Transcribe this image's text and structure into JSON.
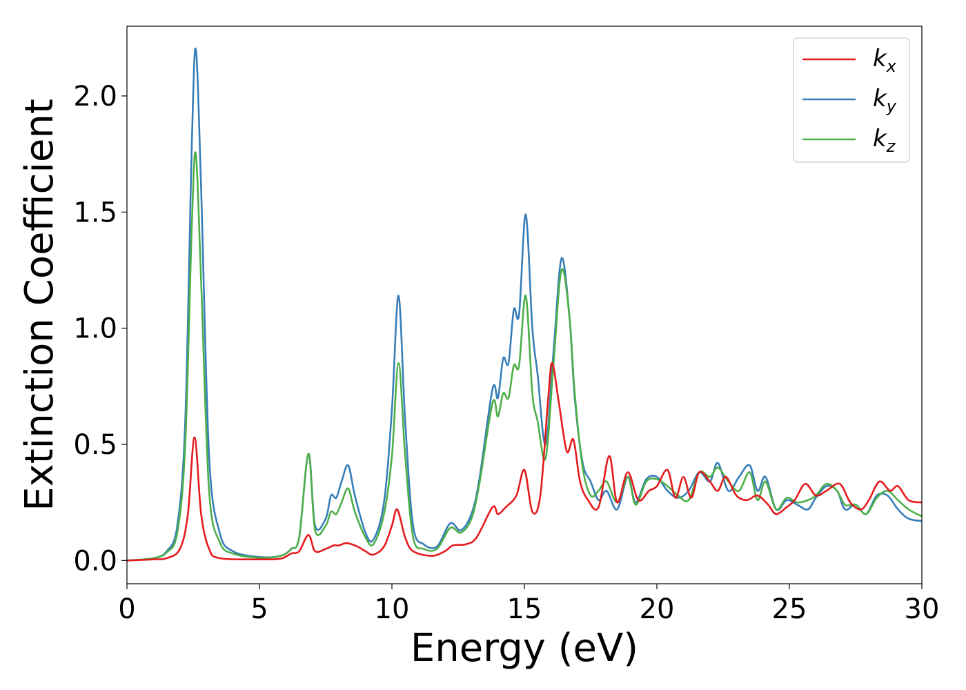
{
  "chart_data": {
    "type": "line",
    "title": "",
    "xlabel": "Energy (eV)",
    "ylabel": "Extinction Coefficient",
    "xlim": [
      0,
      30
    ],
    "ylim": [
      -0.1,
      2.3
    ],
    "xticks": [
      0,
      5,
      10,
      15,
      20,
      25,
      30
    ],
    "xtick_labels": [
      "0",
      "5",
      "10",
      "15",
      "20",
      "25",
      "30"
    ],
    "yticks": [
      0.0,
      0.5,
      1.0,
      1.5,
      2.0
    ],
    "ytick_labels": [
      "0.0",
      "0.5",
      "1.0",
      "1.5",
      "2.0"
    ],
    "grid": false,
    "legend_position": "top-right",
    "series": [
      {
        "name": "kx",
        "legend_main": "k",
        "legend_sub": "x",
        "color": "#e41a1c",
        "points": [
          [
            0,
            0
          ],
          [
            1,
            0.005
          ],
          [
            1.5,
            0.01
          ],
          [
            2,
            0.05
          ],
          [
            2.3,
            0.2
          ],
          [
            2.55,
            0.53
          ],
          [
            2.8,
            0.2
          ],
          [
            3.1,
            0.05
          ],
          [
            3.5,
            0.01
          ],
          [
            5,
            0.005
          ],
          [
            5.8,
            0.008
          ],
          [
            6.2,
            0.03
          ],
          [
            6.5,
            0.04
          ],
          [
            6.85,
            0.11
          ],
          [
            7.1,
            0.04
          ],
          [
            7.5,
            0.05
          ],
          [
            7.8,
            0.065
          ],
          [
            8.0,
            0.065
          ],
          [
            8.3,
            0.075
          ],
          [
            8.7,
            0.06
          ],
          [
            9.0,
            0.04
          ],
          [
            9.3,
            0.025
          ],
          [
            9.7,
            0.06
          ],
          [
            10.0,
            0.15
          ],
          [
            10.2,
            0.22
          ],
          [
            10.5,
            0.1
          ],
          [
            10.8,
            0.04
          ],
          [
            11.5,
            0.02
          ],
          [
            12.0,
            0.04
          ],
          [
            12.3,
            0.065
          ],
          [
            12.8,
            0.07
          ],
          [
            13.2,
            0.1
          ],
          [
            13.8,
            0.23
          ],
          [
            14.0,
            0.2
          ],
          [
            14.3,
            0.23
          ],
          [
            14.7,
            0.28
          ],
          [
            15.0,
            0.39
          ],
          [
            15.3,
            0.21
          ],
          [
            15.6,
            0.28
          ],
          [
            15.9,
            0.7
          ],
          [
            16.05,
            0.85
          ],
          [
            16.3,
            0.68
          ],
          [
            16.6,
            0.47
          ],
          [
            16.85,
            0.52
          ],
          [
            17.1,
            0.34
          ],
          [
            17.4,
            0.26
          ],
          [
            17.8,
            0.23
          ],
          [
            18.2,
            0.45
          ],
          [
            18.5,
            0.25
          ],
          [
            18.9,
            0.38
          ],
          [
            19.3,
            0.26
          ],
          [
            19.7,
            0.3
          ],
          [
            20.0,
            0.32
          ],
          [
            20.4,
            0.39
          ],
          [
            20.7,
            0.27
          ],
          [
            21.0,
            0.36
          ],
          [
            21.3,
            0.27
          ],
          [
            21.6,
            0.38
          ],
          [
            22.0,
            0.34
          ],
          [
            22.3,
            0.3
          ],
          [
            22.6,
            0.36
          ],
          [
            23.0,
            0.28
          ],
          [
            23.4,
            0.26
          ],
          [
            23.8,
            0.28
          ],
          [
            24.2,
            0.24
          ],
          [
            24.5,
            0.2
          ],
          [
            24.9,
            0.23
          ],
          [
            25.2,
            0.26
          ],
          [
            25.6,
            0.33
          ],
          [
            26.0,
            0.28
          ],
          [
            26.4,
            0.3
          ],
          [
            26.9,
            0.33
          ],
          [
            27.3,
            0.25
          ],
          [
            27.7,
            0.22
          ],
          [
            28.0,
            0.26
          ],
          [
            28.4,
            0.34
          ],
          [
            28.8,
            0.3
          ],
          [
            29.1,
            0.32
          ],
          [
            29.5,
            0.26
          ],
          [
            30,
            0.25
          ]
        ]
      },
      {
        "name": "ky",
        "legend_main": "k",
        "legend_sub": "y",
        "color": "#377eb8",
        "points": [
          [
            0,
            0
          ],
          [
            1,
            0.01
          ],
          [
            1.5,
            0.04
          ],
          [
            1.9,
            0.15
          ],
          [
            2.2,
            0.6
          ],
          [
            2.45,
            1.8
          ],
          [
            2.6,
            2.2
          ],
          [
            2.8,
            1.6
          ],
          [
            3.1,
            0.45
          ],
          [
            3.5,
            0.12
          ],
          [
            4.0,
            0.04
          ],
          [
            5.0,
            0.015
          ],
          [
            5.8,
            0.02
          ],
          [
            6.2,
            0.05
          ],
          [
            6.5,
            0.1
          ],
          [
            6.85,
            0.46
          ],
          [
            7.1,
            0.15
          ],
          [
            7.5,
            0.18
          ],
          [
            7.7,
            0.28
          ],
          [
            7.9,
            0.27
          ],
          [
            8.1,
            0.34
          ],
          [
            8.35,
            0.41
          ],
          [
            8.6,
            0.28
          ],
          [
            9.0,
            0.12
          ],
          [
            9.3,
            0.09
          ],
          [
            9.7,
            0.25
          ],
          [
            10.0,
            0.65
          ],
          [
            10.25,
            1.14
          ],
          [
            10.5,
            0.6
          ],
          [
            10.8,
            0.15
          ],
          [
            11.2,
            0.07
          ],
          [
            11.7,
            0.06
          ],
          [
            12.2,
            0.16
          ],
          [
            12.6,
            0.13
          ],
          [
            13.0,
            0.2
          ],
          [
            13.3,
            0.35
          ],
          [
            13.8,
            0.74
          ],
          [
            14.0,
            0.7
          ],
          [
            14.2,
            0.87
          ],
          [
            14.4,
            0.85
          ],
          [
            14.6,
            1.08
          ],
          [
            14.8,
            1.06
          ],
          [
            15.05,
            1.49
          ],
          [
            15.3,
            1.0
          ],
          [
            15.5,
            0.8
          ],
          [
            15.8,
            0.5
          ],
          [
            16.1,
            0.9
          ],
          [
            16.4,
            1.3
          ],
          [
            16.7,
            1.05
          ],
          [
            16.9,
            0.7
          ],
          [
            17.2,
            0.42
          ],
          [
            17.5,
            0.34
          ],
          [
            17.8,
            0.26
          ],
          [
            18.1,
            0.3
          ],
          [
            18.5,
            0.22
          ],
          [
            18.9,
            0.36
          ],
          [
            19.2,
            0.25
          ],
          [
            19.6,
            0.35
          ],
          [
            20.0,
            0.36
          ],
          [
            20.4,
            0.3
          ],
          [
            20.8,
            0.27
          ],
          [
            21.2,
            0.3
          ],
          [
            21.6,
            0.38
          ],
          [
            22.0,
            0.34
          ],
          [
            22.3,
            0.42
          ],
          [
            22.7,
            0.3
          ],
          [
            23.1,
            0.36
          ],
          [
            23.5,
            0.41
          ],
          [
            23.8,
            0.3
          ],
          [
            24.1,
            0.36
          ],
          [
            24.5,
            0.22
          ],
          [
            24.9,
            0.26
          ],
          [
            25.3,
            0.24
          ],
          [
            25.7,
            0.22
          ],
          [
            26.0,
            0.27
          ],
          [
            26.4,
            0.32
          ],
          [
            26.8,
            0.3
          ],
          [
            27.1,
            0.22
          ],
          [
            27.5,
            0.24
          ],
          [
            27.9,
            0.2
          ],
          [
            28.3,
            0.28
          ],
          [
            28.7,
            0.28
          ],
          [
            29.1,
            0.22
          ],
          [
            29.5,
            0.18
          ],
          [
            30,
            0.17
          ]
        ]
      },
      {
        "name": "kz",
        "legend_main": "k",
        "legend_sub": "z",
        "color": "#4daf4a",
        "points": [
          [
            0,
            0
          ],
          [
            1,
            0.01
          ],
          [
            1.5,
            0.035
          ],
          [
            1.9,
            0.12
          ],
          [
            2.2,
            0.5
          ],
          [
            2.45,
            1.45
          ],
          [
            2.6,
            1.75
          ],
          [
            2.8,
            1.2
          ],
          [
            3.1,
            0.3
          ],
          [
            3.5,
            0.08
          ],
          [
            4.0,
            0.03
          ],
          [
            5.0,
            0.012
          ],
          [
            5.8,
            0.02
          ],
          [
            6.2,
            0.05
          ],
          [
            6.5,
            0.1
          ],
          [
            6.85,
            0.46
          ],
          [
            7.1,
            0.13
          ],
          [
            7.5,
            0.15
          ],
          [
            7.7,
            0.21
          ],
          [
            7.9,
            0.2
          ],
          [
            8.1,
            0.25
          ],
          [
            8.35,
            0.31
          ],
          [
            8.6,
            0.21
          ],
          [
            9.0,
            0.1
          ],
          [
            9.3,
            0.07
          ],
          [
            9.7,
            0.2
          ],
          [
            10.0,
            0.45
          ],
          [
            10.25,
            0.85
          ],
          [
            10.5,
            0.45
          ],
          [
            10.8,
            0.1
          ],
          [
            11.2,
            0.05
          ],
          [
            11.7,
            0.05
          ],
          [
            12.2,
            0.14
          ],
          [
            12.6,
            0.12
          ],
          [
            13.0,
            0.18
          ],
          [
            13.3,
            0.33
          ],
          [
            13.8,
            0.68
          ],
          [
            14.0,
            0.62
          ],
          [
            14.2,
            0.72
          ],
          [
            14.4,
            0.7
          ],
          [
            14.6,
            0.84
          ],
          [
            14.8,
            0.84
          ],
          [
            15.05,
            1.14
          ],
          [
            15.3,
            0.72
          ],
          [
            15.5,
            0.6
          ],
          [
            15.8,
            0.44
          ],
          [
            16.1,
            0.85
          ],
          [
            16.4,
            1.25
          ],
          [
            16.7,
            1.05
          ],
          [
            16.9,
            0.72
          ],
          [
            17.2,
            0.4
          ],
          [
            17.5,
            0.28
          ],
          [
            17.8,
            0.3
          ],
          [
            18.1,
            0.34
          ],
          [
            18.5,
            0.25
          ],
          [
            18.9,
            0.36
          ],
          [
            19.2,
            0.24
          ],
          [
            19.6,
            0.34
          ],
          [
            20.0,
            0.35
          ],
          [
            20.4,
            0.32
          ],
          [
            20.8,
            0.28
          ],
          [
            21.2,
            0.26
          ],
          [
            21.6,
            0.38
          ],
          [
            22.0,
            0.36
          ],
          [
            22.3,
            0.4
          ],
          [
            22.7,
            0.34
          ],
          [
            23.1,
            0.3
          ],
          [
            23.5,
            0.38
          ],
          [
            23.8,
            0.26
          ],
          [
            24.1,
            0.34
          ],
          [
            24.5,
            0.22
          ],
          [
            24.9,
            0.27
          ],
          [
            25.3,
            0.25
          ],
          [
            25.7,
            0.26
          ],
          [
            26.0,
            0.28
          ],
          [
            26.4,
            0.33
          ],
          [
            26.8,
            0.3
          ],
          [
            27.1,
            0.24
          ],
          [
            27.5,
            0.24
          ],
          [
            27.9,
            0.2
          ],
          [
            28.3,
            0.27
          ],
          [
            28.7,
            0.3
          ],
          [
            29.1,
            0.26
          ],
          [
            29.5,
            0.22
          ],
          [
            30,
            0.19
          ]
        ]
      }
    ]
  }
}
